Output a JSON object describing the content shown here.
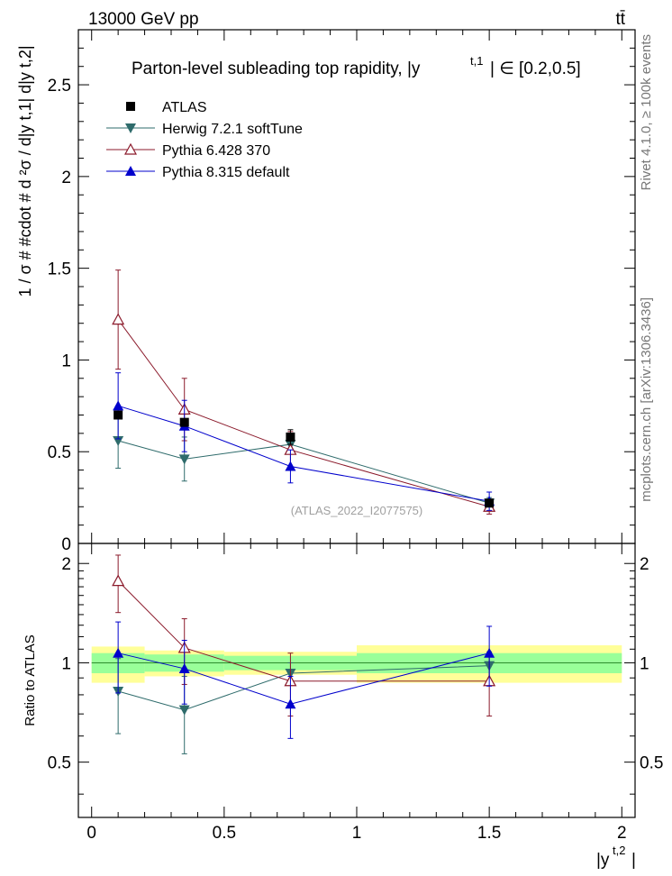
{
  "header": {
    "energy_label": "13000 GeV pp",
    "process_label": "tt̄"
  },
  "side_labels": {
    "rivet": "Rivet 4.1.0, ≥ 100k events",
    "mcplots": "mcplots.cern.ch [arXiv:1306.3436]"
  },
  "colors": {
    "atlas": "#000000",
    "herwig": "#2e6b6b",
    "pythia6": "#8b1a2b",
    "pythia8": "#0000cc",
    "band_inner": "#99ff99",
    "band_outer": "#ffff99",
    "watermark": "#a0a0a0"
  },
  "chart_data": [
    {
      "type": "line",
      "panel": "main",
      "title": "Parton-level subleading top rapidity, |y",
      "title_sup": "t,1",
      "title_tail": "| ∈ [0.2,0.5]",
      "ylabel": "1 / σ # #cdot # d ²σ / d|y t,1| d|y t,2|",
      "watermark": "(ATLAS_2022_I2077575)",
      "xlim": [
        -0.05,
        2.05
      ],
      "ylim": [
        0,
        2.8
      ],
      "yticks": [
        0,
        0.5,
        1,
        1.5,
        2,
        2.5
      ],
      "ytick_labels": [
        "0",
        "0.5",
        "1",
        "1.5",
        "2",
        "2.5"
      ],
      "series": [
        {
          "name": "ATLAS",
          "marker": "square",
          "x": [
            0.1,
            0.35,
            0.75,
            1.5
          ],
          "y": [
            0.7,
            0.66,
            0.58,
            0.22
          ],
          "yerr": [
            0.02,
            0.02,
            0.04,
            0.02
          ]
        },
        {
          "name": "Herwig 7.2.1 softTune",
          "marker": "triangle-down",
          "x": [
            0.1,
            0.35,
            0.75,
            1.5
          ],
          "y": [
            0.56,
            0.46,
            0.54,
            0.22
          ],
          "yerr": [
            0.15,
            0.12,
            0.05,
            0.03
          ]
        },
        {
          "name": "Pythia 6.428 370",
          "marker": "triangle-open",
          "x": [
            0.1,
            0.35,
            0.75,
            1.5
          ],
          "y": [
            1.22,
            0.73,
            0.51,
            0.2
          ],
          "yerr": [
            0.27,
            0.17,
            0.1,
            0.04
          ]
        },
        {
          "name": "Pythia 8.315 default",
          "marker": "triangle-up",
          "x": [
            0.1,
            0.35,
            0.75,
            1.5
          ],
          "y": [
            0.75,
            0.64,
            0.42,
            0.23
          ],
          "yerr": [
            0.18,
            0.14,
            0.09,
            0.05
          ]
        }
      ]
    },
    {
      "type": "line",
      "panel": "ratio",
      "ylabel": "Ratio to ATLAS",
      "xlabel": "|y",
      "xlabel_sup": "t,2",
      "xlabel_tail": "|",
      "xlim": [
        -0.05,
        2.05
      ],
      "ylim": [
        0.34,
        2.3
      ],
      "xticks": [
        0,
        0.5,
        1,
        1.5,
        2
      ],
      "xtick_labels": [
        "0",
        "0.5",
        "1",
        "1.5",
        "2"
      ],
      "yticks": [
        0.5,
        1,
        2
      ],
      "ytick_labels": [
        "0.5",
        "1",
        "2"
      ],
      "bins": [
        {
          "x0": 0.0,
          "x1": 0.2,
          "inner": [
            0.93,
            1.07
          ],
          "outer": [
            0.87,
            1.12
          ]
        },
        {
          "x0": 0.2,
          "x1": 0.5,
          "inner": [
            0.94,
            1.06
          ],
          "outer": [
            0.91,
            1.09
          ]
        },
        {
          "x0": 0.5,
          "x1": 1.0,
          "inner": [
            0.95,
            1.05
          ],
          "outer": [
            0.92,
            1.08
          ]
        },
        {
          "x0": 1.0,
          "x1": 2.0,
          "inner": [
            0.93,
            1.07
          ],
          "outer": [
            0.87,
            1.13
          ]
        }
      ],
      "series": [
        {
          "name": "Herwig 7.2.1 softTune",
          "marker": "triangle-down",
          "x": [
            0.1,
            0.35,
            0.75,
            1.5
          ],
          "y": [
            0.82,
            0.72,
            0.93,
            0.98
          ],
          "yerr": [
            0.21,
            0.19,
            0.07,
            0.1
          ]
        },
        {
          "name": "Pythia 6.428 370",
          "marker": "triangle-open",
          "x": [
            0.1,
            0.35,
            0.75,
            1.5
          ],
          "y": [
            1.77,
            1.11,
            0.88,
            0.88
          ],
          "yerr": [
            0.35,
            0.25,
            0.19,
            0.19
          ]
        },
        {
          "name": "Pythia 8.315 default",
          "marker": "triangle-up",
          "x": [
            0.1,
            0.35,
            0.75,
            1.5
          ],
          "y": [
            1.07,
            0.96,
            0.75,
            1.07
          ],
          "yerr": [
            0.26,
            0.21,
            0.16,
            0.22
          ]
        }
      ]
    }
  ]
}
